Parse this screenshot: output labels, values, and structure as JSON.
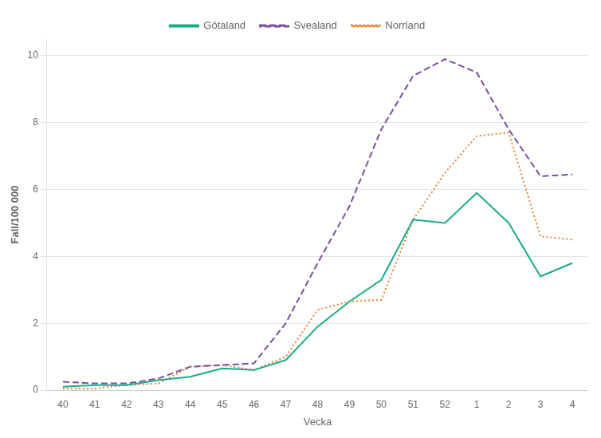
{
  "chart_data": {
    "type": "line",
    "xlabel": "Vecka",
    "ylabel": "Fall/100 000",
    "categories": [
      "40",
      "41",
      "42",
      "43",
      "44",
      "45",
      "46",
      "47",
      "48",
      "49",
      "50",
      "51",
      "52",
      "1",
      "2",
      "3",
      "4"
    ],
    "series": [
      {
        "name": "Götaland",
        "color": "#1aab8a",
        "line_style": "solid",
        "values": [
          0.1,
          0.15,
          0.15,
          0.3,
          0.4,
          0.65,
          0.6,
          0.9,
          1.9,
          2.65,
          3.3,
          5.1,
          5.0,
          5.9,
          5.0,
          3.4,
          3.8
        ]
      },
      {
        "name": "Svealand",
        "color": "#7b4fa0",
        "line_style": "dashed",
        "values": [
          0.25,
          0.2,
          0.2,
          0.35,
          0.7,
          0.75,
          0.8,
          2.0,
          3.8,
          5.5,
          7.8,
          9.4,
          9.9,
          9.5,
          7.8,
          6.4,
          6.45
        ]
      },
      {
        "name": "Norrland",
        "color": "#e8822a",
        "line_style": "dotted",
        "values": [
          0.05,
          0.05,
          0.15,
          0.2,
          0.7,
          0.75,
          0.6,
          1.0,
          2.4,
          2.65,
          2.7,
          5.1,
          6.5,
          7.6,
          7.7,
          4.6,
          4.5
        ]
      }
    ],
    "ylim": [
      0,
      10.5
    ],
    "yticks": [
      0,
      2,
      4,
      6,
      8,
      10
    ],
    "grid": true,
    "legend": "top"
  }
}
